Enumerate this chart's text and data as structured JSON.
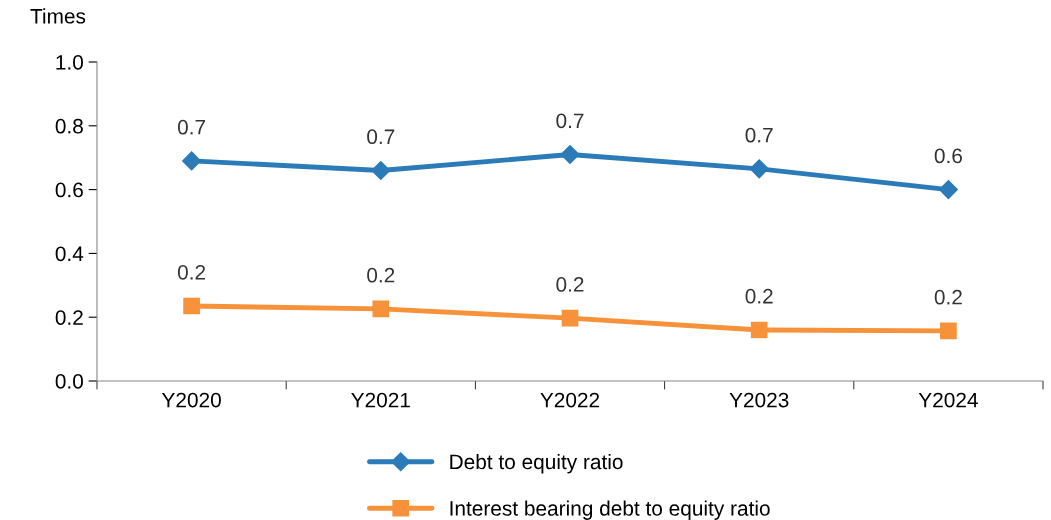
{
  "chart_data": {
    "type": "line",
    "ylabel": "Times",
    "categories": [
      "Y2020",
      "Y2021",
      "Y2022",
      "Y2023",
      "Y2024"
    ],
    "series": [
      {
        "name": "Debt to equity ratio",
        "color": "#2b7bb9",
        "marker": "diamond",
        "values": [
          0.69,
          0.66,
          0.71,
          0.665,
          0.6
        ],
        "value_labels": [
          "0.7",
          "0.7",
          "0.7",
          "0.7",
          "0.6"
        ]
      },
      {
        "name": "Interest bearing debt to equity ratio",
        "color": "#f7923a",
        "marker": "square",
        "values": [
          0.235,
          0.226,
          0.197,
          0.16,
          0.157
        ],
        "value_labels": [
          "0.2",
          "0.2",
          "0.2",
          "0.2",
          "0.2"
        ]
      }
    ],
    "ylim": [
      0,
      1
    ],
    "yticks": [
      {
        "value": 0,
        "label": "0.0"
      },
      {
        "value": 0.2,
        "label": "0.2"
      },
      {
        "value": 0.4,
        "label": "0.4"
      },
      {
        "value": 0.6,
        "label": "0.6"
      },
      {
        "value": 0.8,
        "label": "0.8"
      },
      {
        "value": 1,
        "label": "1.0"
      }
    ],
    "grid": false,
    "legend": "bottom",
    "line_style": "solid"
  }
}
